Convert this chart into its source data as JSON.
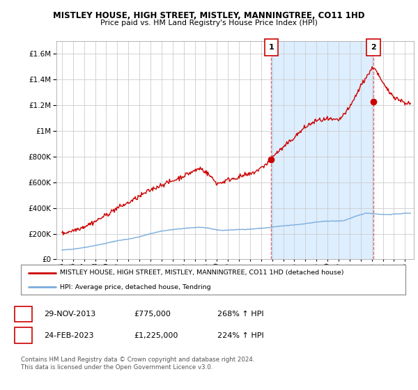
{
  "title": "MISTLEY HOUSE, HIGH STREET, MISTLEY, MANNINGTREE, CO11 1HD",
  "subtitle": "Price paid vs. HM Land Registry's House Price Index (HPI)",
  "ylim": [
    0,
    1700000
  ],
  "yticks": [
    0,
    200000,
    400000,
    600000,
    800000,
    1000000,
    1200000,
    1400000,
    1600000
  ],
  "ytick_labels": [
    "£0",
    "£200K",
    "£400K",
    "£600K",
    "£800K",
    "£1M",
    "£1.2M",
    "£1.4M",
    "£1.6M"
  ],
  "hpi_color": "#7aaddc",
  "price_color": "#cc0000",
  "shade_color": "#ddeeff",
  "grid_color": "#cccccc",
  "bg_color": "#ffffff",
  "xlim_left": 1994.5,
  "xlim_right": 2026.8,
  "marker1_date": 2013.917,
  "marker1_price": 775000,
  "marker1_label": "1",
  "marker2_date": 2023.15,
  "marker2_price": 1225000,
  "marker2_label": "2",
  "legend_line1": "MISTLEY HOUSE, HIGH STREET, MISTLEY, MANNINGTREE, CO11 1HD (detached house)",
  "legend_line2": "HPI: Average price, detached house, Tendring",
  "sale1_date": "29-NOV-2013",
  "sale1_price": "£775,000",
  "sale1_hpi": "268% ↑ HPI",
  "sale2_date": "24-FEB-2023",
  "sale2_price": "£1,225,000",
  "sale2_hpi": "224% ↑ HPI",
  "footer": "Contains HM Land Registry data © Crown copyright and database right 2024.\nThis data is licensed under the Open Government Licence v3.0."
}
